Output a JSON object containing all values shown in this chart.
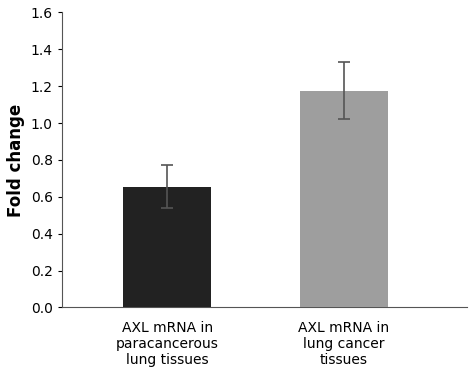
{
  "categories": [
    "AXL mRNA in\nparacancerous\nlung tissues",
    "AXL mRNA in\nlung cancer\ntissues"
  ],
  "values": [
    0.655,
    1.175
  ],
  "errors": [
    0.115,
    0.155
  ],
  "bar_colors": [
    "#222222",
    "#9e9e9e"
  ],
  "bar_edge_colors": [
    "#222222",
    "#9e9e9e"
  ],
  "ylabel": "Fold change",
  "ylim": [
    0,
    1.6
  ],
  "yticks": [
    0,
    0.2,
    0.4,
    0.6,
    0.8,
    1.0,
    1.2,
    1.4,
    1.6
  ],
  "bar_width": 0.5,
  "error_capsize": 4,
  "error_color": "#555555",
  "background_color": "#ffffff",
  "ylabel_fontsize": 12,
  "ylabel_fontweight": "bold",
  "tick_fontsize": 10,
  "label_fontsize": 10,
  "x_positions": [
    1,
    2
  ],
  "xlim": [
    0.4,
    2.7
  ]
}
